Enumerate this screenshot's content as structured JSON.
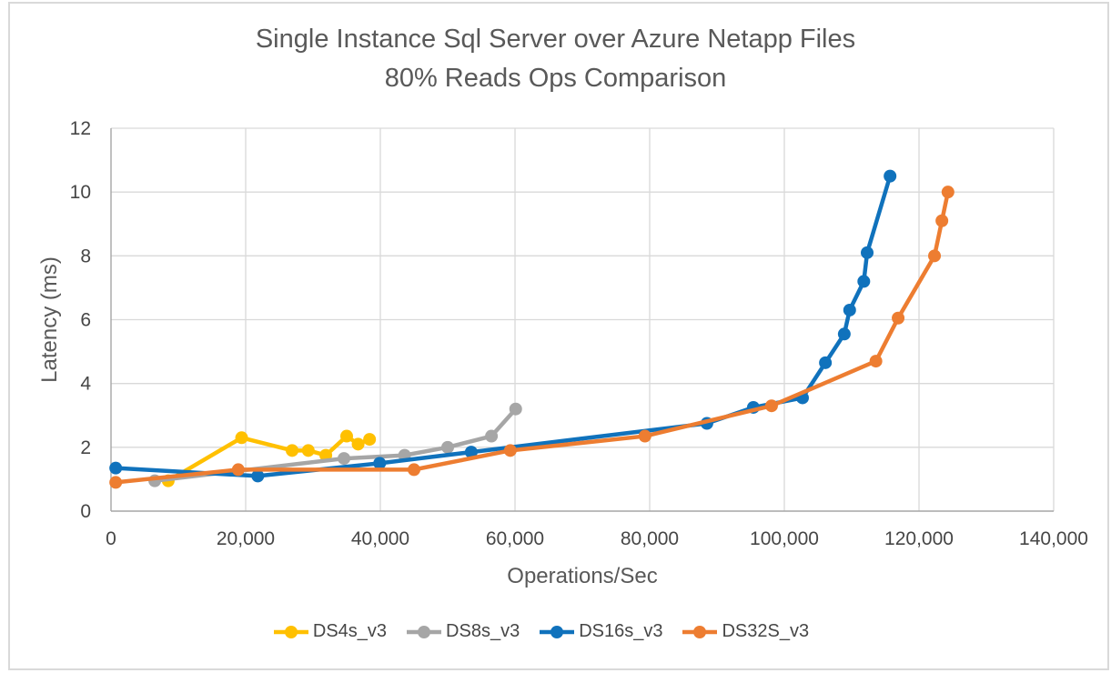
{
  "title": {
    "line1": "Single Instance Sql Server over Azure Netapp Files",
    "line2": "80% Reads Ops Comparison"
  },
  "styles": {
    "title_color": "#595959",
    "tick_label_color": "#464646",
    "axis_title_color": "#595959",
    "grid_color": "#d9d9d9",
    "axis_line_color": "#a6a6a6",
    "background": "#ffffff",
    "frame_border_color": "#d9d9d9"
  },
  "chart_data": {
    "type": "line",
    "title": "Single Instance Sql Server over Azure Netapp Files 80% Reads Ops Comparison",
    "xlabel": "Operations/Sec",
    "ylabel": "Latency (ms)",
    "xlim": [
      0,
      140000
    ],
    "ylim": [
      0,
      12
    ],
    "x_ticks": [
      0,
      20000,
      40000,
      60000,
      80000,
      100000,
      120000,
      140000
    ],
    "x_tick_labels": [
      "0",
      "20,000",
      "40,000",
      "60,000",
      "80,000",
      "100,000",
      "120,000",
      "140,000"
    ],
    "y_ticks": [
      0,
      2,
      4,
      6,
      8,
      10,
      12
    ],
    "y_tick_labels": [
      "0",
      "2",
      "4",
      "6",
      "8",
      "10",
      "12"
    ],
    "grid": true,
    "legend_position": "bottom",
    "series": [
      {
        "name": "DS4s_v3",
        "color": "#FFC000",
        "points": [
          [
            8500,
            0.95
          ],
          [
            19400,
            2.3
          ],
          [
            26900,
            1.9
          ],
          [
            29300,
            1.9
          ],
          [
            31900,
            1.75
          ],
          [
            35000,
            2.35
          ],
          [
            36700,
            2.1
          ],
          [
            38400,
            2.25
          ]
        ]
      },
      {
        "name": "DS8s_v3",
        "color": "#A6A6A6",
        "points": [
          [
            6500,
            0.95
          ],
          [
            34600,
            1.65
          ],
          [
            43600,
            1.75
          ],
          [
            50000,
            2.0
          ],
          [
            56500,
            2.35
          ],
          [
            60100,
            3.2
          ]
        ]
      },
      {
        "name": "DS16s_v3",
        "color": "#1072BC",
        "points": [
          [
            700,
            1.35
          ],
          [
            21800,
            1.1
          ],
          [
            39900,
            1.5
          ],
          [
            53500,
            1.85
          ],
          [
            88500,
            2.75
          ],
          [
            95400,
            3.25
          ],
          [
            102700,
            3.55
          ],
          [
            106100,
            4.65
          ],
          [
            108900,
            5.55
          ],
          [
            109700,
            6.3
          ],
          [
            111800,
            7.2
          ],
          [
            112300,
            8.1
          ],
          [
            115700,
            10.5
          ]
        ]
      },
      {
        "name": "DS32S_v3",
        "color": "#ED7D31",
        "points": [
          [
            700,
            0.9
          ],
          [
            18900,
            1.3
          ],
          [
            45000,
            1.3
          ],
          [
            59300,
            1.9
          ],
          [
            79300,
            2.35
          ],
          [
            98100,
            3.3
          ],
          [
            113600,
            4.7
          ],
          [
            116900,
            6.05
          ],
          [
            122300,
            8.0
          ],
          [
            123400,
            9.1
          ],
          [
            124300,
            10.0
          ]
        ]
      }
    ]
  }
}
